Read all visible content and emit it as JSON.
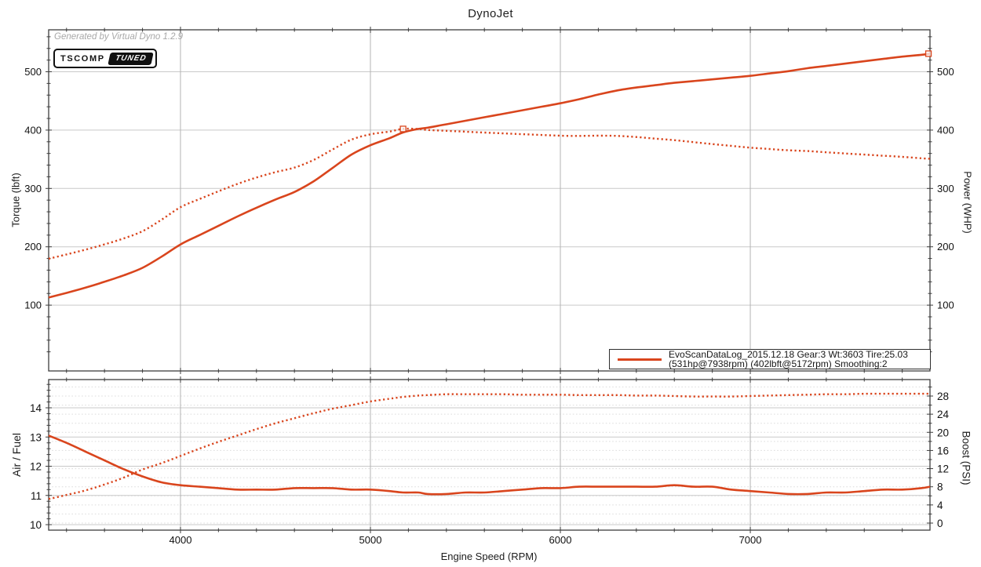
{
  "title": "DynoJet",
  "watermark": "Generated by Virtual Dyno 1.2.9",
  "badge": {
    "name": "TSCOMP",
    "tag": "TUNED"
  },
  "legend": {
    "line1": "EvoScanDataLog_2015.12.18 Gear:3 Wt:3603 Tire:25.03",
    "line2": "(531hp@7938rpm) (402lbft@5172rpm) Smoothing:2"
  },
  "colors": {
    "curve": "#d9451d",
    "grid_major": "#c9c9c9",
    "grid_vert": "#b3b3b3",
    "grid_dotted": "#dcdcdc",
    "axis": "#3d3d3d",
    "tick_text": "#111111"
  },
  "chart_data": [
    {
      "type": "line",
      "title": "DynoJet",
      "xlabel": "Engine Speed (RPM)",
      "ylabel_left": "Torque (lbft)",
      "ylabel_right": "Power (WHP)",
      "x_range": [
        3306,
        7946
      ],
      "y_range": [
        0,
        570
      ],
      "x_ticks": [
        4000,
        5000,
        6000,
        7000
      ],
      "y_ticks": [
        100,
        200,
        300,
        400,
        500
      ],
      "grid": "on",
      "legend_position": "bottom-right",
      "x": [
        3306,
        3400,
        3500,
        3600,
        3700,
        3800,
        3900,
        4000,
        4100,
        4200,
        4300,
        4400,
        4500,
        4600,
        4700,
        4800,
        4900,
        5000,
        5100,
        5172,
        5252,
        5300,
        5400,
        5500,
        5600,
        5700,
        5800,
        5900,
        6000,
        6100,
        6200,
        6300,
        6400,
        6500,
        6600,
        6700,
        6800,
        6900,
        7000,
        7100,
        7200,
        7300,
        7400,
        7500,
        7600,
        7700,
        7800,
        7900,
        7946
      ],
      "series": [
        {
          "name": "Power (WHP)",
          "style": "solid",
          "values": [
            113,
            121,
            130,
            140,
            151,
            164,
            183,
            204,
            220,
            236,
            252,
            267,
            281,
            294,
            312,
            335,
            358,
            374,
            386,
            396,
            402,
            404,
            410,
            416,
            422,
            428,
            434,
            440,
            446,
            453,
            461,
            468,
            473,
            477,
            481,
            484,
            487,
            490,
            493,
            497,
            501,
            506,
            510,
            514,
            518,
            522,
            526,
            529,
            531
          ]
        },
        {
          "name": "Torque (lbft)",
          "style": "dotted",
          "values": [
            179.5,
            186.9,
            195.1,
            204.2,
            214.3,
            226.7,
            246.4,
            267.9,
            281.8,
            295.1,
            307.8,
            318.7,
            327.9,
            335.7,
            348.7,
            366.6,
            383.7,
            392.8,
            397.5,
            402.1,
            402.0,
            400.3,
            398.8,
            397.3,
            395.8,
            394.4,
            393.0,
            391.7,
            390.4,
            390.0,
            390.5,
            390.1,
            388.2,
            385.4,
            382.8,
            379.4,
            376.1,
            373.0,
            369.9,
            367.6,
            365.4,
            364.1,
            362.0,
            359.9,
            358.0,
            356.1,
            354.2,
            351.7,
            351.0
          ]
        }
      ],
      "peak_markers": [
        {
          "label": "402lbft@5172rpm",
          "rpm": 5172,
          "value": 402
        },
        {
          "label": "531hp@7938rpm",
          "rpm": 7938,
          "value": 531
        }
      ]
    },
    {
      "type": "line",
      "xlabel": "Engine Speed (RPM)",
      "ylabel_left": "Air / Fuel",
      "ylabel_right": "Boost (PSI)",
      "x_range": [
        3306,
        7946
      ],
      "afr_range": [
        9.8,
        14.9
      ],
      "boost_range": [
        -1.5,
        31.3
      ],
      "x_ticks": [
        4000,
        5000,
        6000,
        7000
      ],
      "afr_ticks": [
        10,
        11,
        12,
        13,
        14
      ],
      "boost_ticks": [
        0,
        4,
        8,
        12,
        16,
        20,
        24,
        28
      ],
      "grid": "on",
      "x": [
        3306,
        3400,
        3500,
        3600,
        3700,
        3800,
        3900,
        4000,
        4100,
        4200,
        4300,
        4400,
        4500,
        4600,
        4700,
        4800,
        4900,
        5000,
        5100,
        5172,
        5252,
        5300,
        5400,
        5500,
        5600,
        5700,
        5800,
        5900,
        6000,
        6100,
        6200,
        6300,
        6400,
        6500,
        6600,
        6700,
        6800,
        6900,
        7000,
        7100,
        7200,
        7300,
        7400,
        7500,
        7600,
        7700,
        7800,
        7900,
        7946
      ],
      "series": [
        {
          "name": "Air / Fuel",
          "style": "solid",
          "values": [
            13.05,
            12.8,
            12.5,
            12.2,
            11.9,
            11.65,
            11.45,
            11.35,
            11.3,
            11.25,
            11.2,
            11.2,
            11.2,
            11.25,
            11.25,
            11.25,
            11.2,
            11.2,
            11.15,
            11.1,
            11.1,
            11.05,
            11.05,
            11.1,
            11.1,
            11.15,
            11.2,
            11.25,
            11.25,
            11.3,
            11.3,
            11.3,
            11.3,
            11.3,
            11.35,
            11.3,
            11.3,
            11.2,
            11.15,
            11.1,
            11.05,
            11.05,
            11.1,
            11.1,
            11.15,
            11.2,
            11.2,
            11.25,
            11.3
          ]
        },
        {
          "name": "Boost (PSI)",
          "style": "dotted",
          "values": [
            5.3,
            6.2,
            7.2,
            8.5,
            10.0,
            11.8,
            13.2,
            14.8,
            16.4,
            17.9,
            19.3,
            20.7,
            22.0,
            23.1,
            24.2,
            25.2,
            26.0,
            26.8,
            27.4,
            27.8,
            28.1,
            28.2,
            28.4,
            28.4,
            28.4,
            28.4,
            28.3,
            28.3,
            28.3,
            28.2,
            28.2,
            28.2,
            28.1,
            28.1,
            28.0,
            27.9,
            27.9,
            27.9,
            28.0,
            28.1,
            28.2,
            28.3,
            28.4,
            28.4,
            28.5,
            28.5,
            28.5,
            28.5,
            28.5
          ]
        }
      ]
    }
  ]
}
